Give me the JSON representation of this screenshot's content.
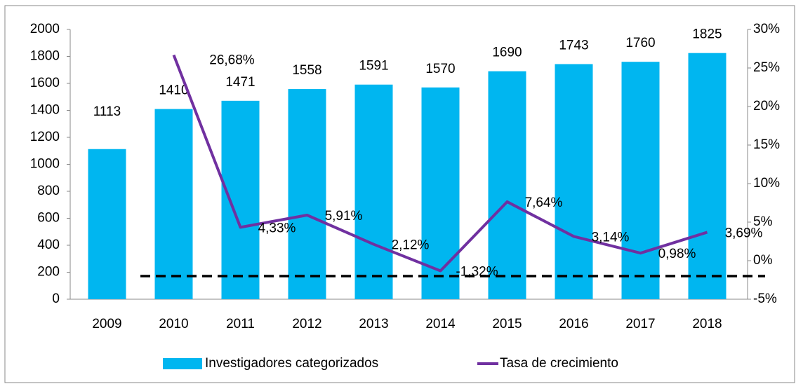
{
  "chart_data": {
    "type": "bar-line",
    "categories": [
      "2009",
      "2010",
      "2011",
      "2012",
      "2013",
      "2014",
      "2015",
      "2016",
      "2017",
      "2018"
    ],
    "series": [
      {
        "name": "Investigadores categorizados",
        "type": "bar",
        "color": "#00b6f0",
        "values": [
          1113,
          1410,
          1471,
          1558,
          1591,
          1570,
          1690,
          1743,
          1760,
          1825
        ]
      },
      {
        "name": "Tasa de crecimiento",
        "type": "line",
        "axis": "y2",
        "color": "#7030a0",
        "values": [
          null,
          26.68,
          4.33,
          5.91,
          2.12,
          -1.32,
          7.64,
          3.14,
          0.98,
          3.69
        ],
        "value_labels": [
          null,
          "26,68%",
          "4,33%",
          "5,91%",
          "2,12%",
          "-1,32%",
          "7,64%",
          "3,14%",
          "0,98%",
          "3,69%"
        ]
      }
    ],
    "ylim": [
      0,
      2000
    ],
    "yticks": [
      0,
      200,
      400,
      600,
      800,
      1000,
      1200,
      1400,
      1600,
      1800,
      2000
    ],
    "y2lim": [
      -5,
      30
    ],
    "y2ticks": [
      {
        "value": -5,
        "label": "-5%"
      },
      {
        "value": 0,
        "label": "0%"
      },
      {
        "value": 5,
        "label": "5%"
      },
      {
        "value": 10,
        "label": "10%"
      },
      {
        "value": 15,
        "label": "15%"
      },
      {
        "value": 20,
        "label": "20%"
      },
      {
        "value": 25,
        "label": "25%"
      },
      {
        "value": 30,
        "label": "30%"
      }
    ],
    "reference_line": {
      "value": -2,
      "axis": "y2",
      "color": "#000000",
      "dashed": true
    },
    "legend": "bottom"
  }
}
